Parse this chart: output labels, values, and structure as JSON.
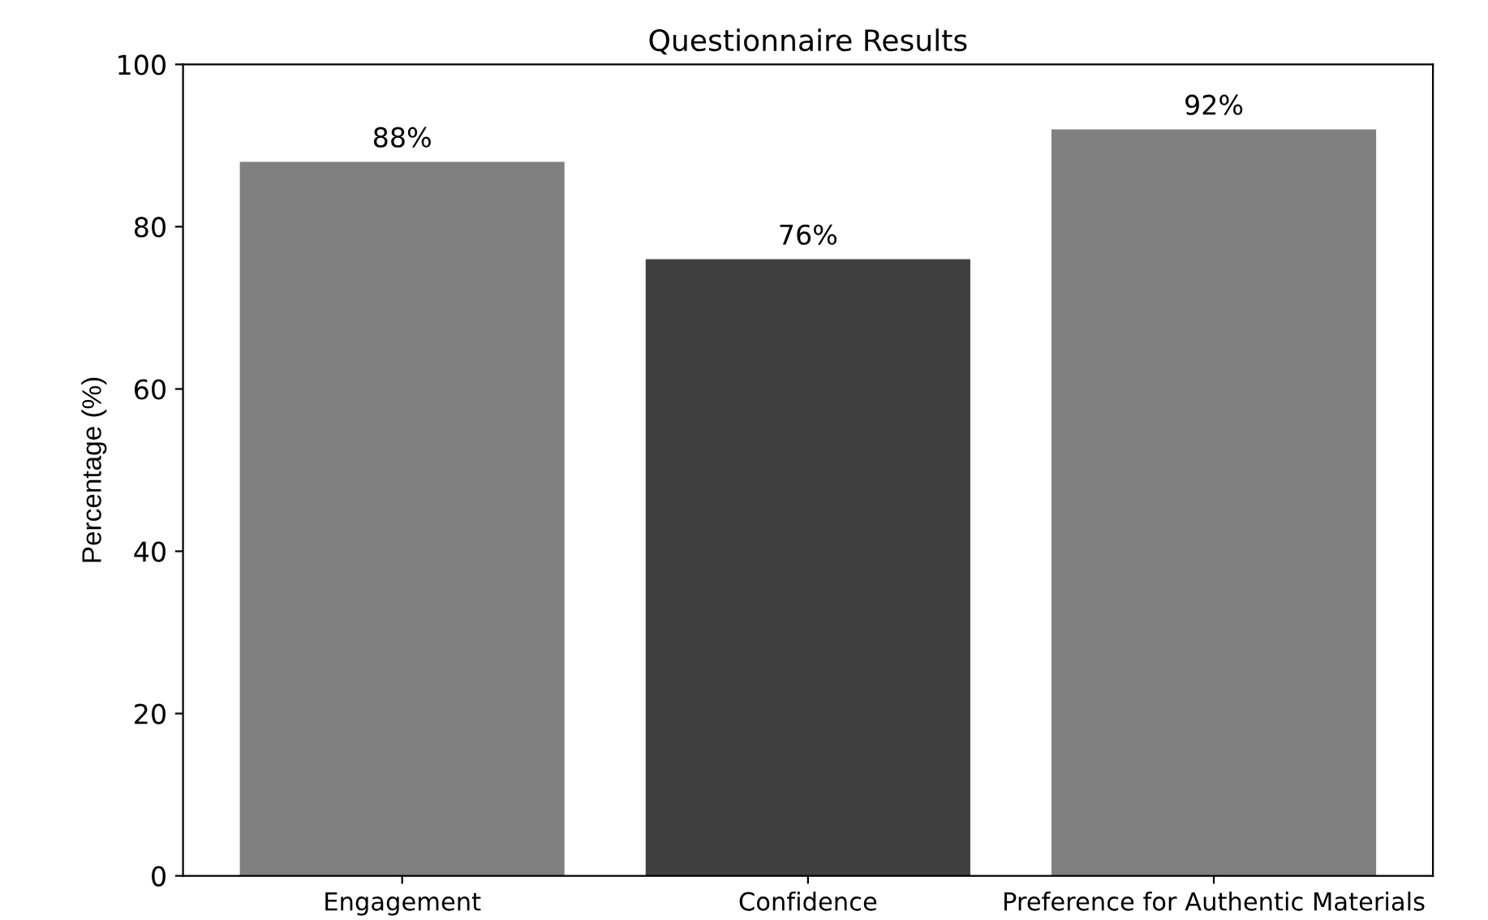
{
  "chart_data": {
    "type": "bar",
    "title": "Questionnaire Results",
    "ylabel": "Percentage (%)",
    "categories": [
      "Engagement",
      "Confidence",
      "Preference for Authentic Materials"
    ],
    "values": [
      88,
      76,
      92
    ],
    "colors": [
      "#808080",
      "#404040",
      "#808080"
    ],
    "value_labels": [
      "88%",
      "76%",
      "92%"
    ],
    "ylim": [
      0,
      100
    ],
    "yticks": [
      0,
      20,
      40,
      60,
      80,
      100
    ],
    "grid": false
  }
}
